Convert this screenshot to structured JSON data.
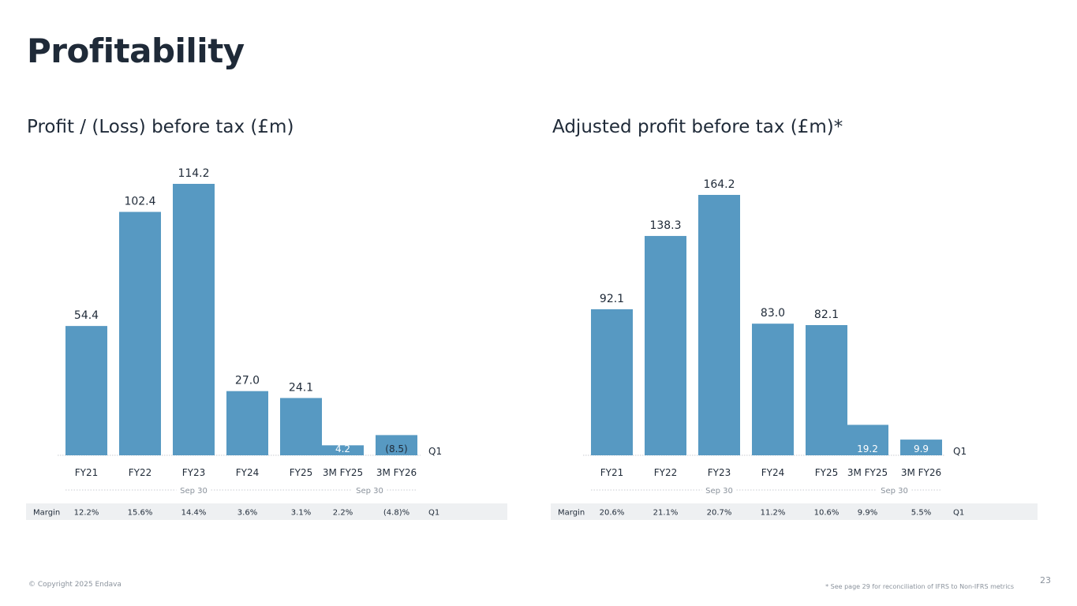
{
  "page": {
    "title": "Profitability",
    "copyright": "© Copyright 2025 Endava",
    "footnote": "* See page 29 for reconciliation of IFRS to Non-IFRS metrics",
    "page_number": "23"
  },
  "colors": {
    "bar": "#5799c2",
    "text": "#1f2a38",
    "muted": "#8a929c",
    "margin_band": "#eef0f2"
  },
  "chart_data": [
    {
      "type": "bar",
      "title": "Profit / (Loss) before tax (£m)",
      "categories": [
        "FY21",
        "FY22",
        "FY23",
        "FY24",
        "FY25",
        "3M FY25",
        "3M FY26"
      ],
      "values": [
        54.4,
        102.4,
        114.2,
        27.0,
        24.1,
        4.2,
        -8.5
      ],
      "value_labels": [
        "54.4",
        "102.4",
        "114.2",
        "27.0",
        "24.1",
        "4.2",
        "(8.5)"
      ],
      "group_labels": [
        "Sep 30",
        "Sep 30"
      ],
      "quarter_label": "Q1",
      "margin_label": "Margin",
      "margins": [
        "12.2%",
        "15.6%",
        "14.4%",
        "3.6%",
        "3.1%",
        "2.2%",
        "(4.8)%"
      ],
      "margin_quarter_label": "Q1",
      "xlabel": "",
      "ylabel": "",
      "ylim": [
        0,
        114.2
      ]
    },
    {
      "type": "bar",
      "title": "Adjusted profit before tax (£m)*",
      "categories": [
        "FY21",
        "FY22",
        "FY23",
        "FY24",
        "FY25",
        "3M FY25",
        "3M FY26"
      ],
      "values": [
        92.1,
        138.3,
        164.2,
        83.0,
        82.1,
        19.2,
        9.9
      ],
      "value_labels": [
        "92.1",
        "138.3",
        "164.2",
        "83.0",
        "82.1",
        "19.2",
        "9.9"
      ],
      "group_labels": [
        "Sep 30",
        "Sep 30"
      ],
      "quarter_label": "Q1",
      "margin_label": "Margin",
      "margins": [
        "20.6%",
        "21.1%",
        "20.7%",
        "11.2%",
        "10.6%",
        "9.9%",
        "5.5%"
      ],
      "margin_quarter_label": "Q1",
      "xlabel": "",
      "ylabel": "",
      "ylim": [
        0,
        164.2
      ]
    }
  ]
}
